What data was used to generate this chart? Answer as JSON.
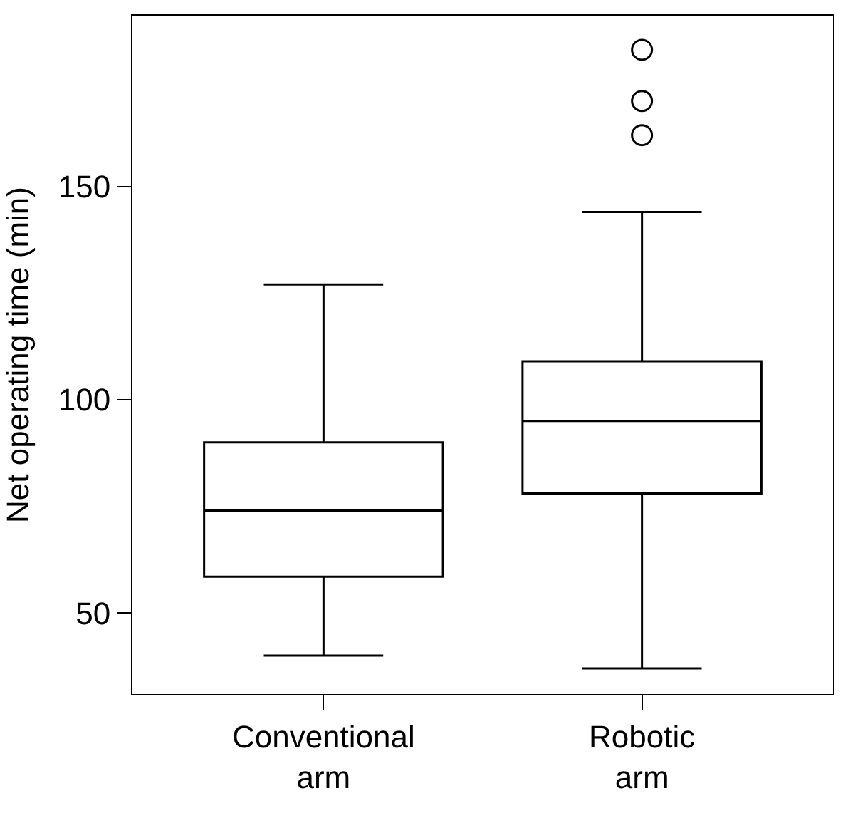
{
  "chart_data": {
    "type": "box",
    "ylabel": "Net operating time (min)",
    "categories": [
      "Conventional\narm",
      "Robotic\narm"
    ],
    "boxes": [
      {
        "low": 40,
        "q1": 58.5,
        "median": 74,
        "q3": 90,
        "high": 127
      },
      {
        "low": 37,
        "q1": 78,
        "median": 95,
        "q3": 109,
        "high": 144,
        "outliers": [
          162,
          170,
          182
        ]
      }
    ],
    "color": "#000000",
    "ylim": [
      31,
      190
    ],
    "yticks": [
      50,
      100,
      150
    ]
  }
}
